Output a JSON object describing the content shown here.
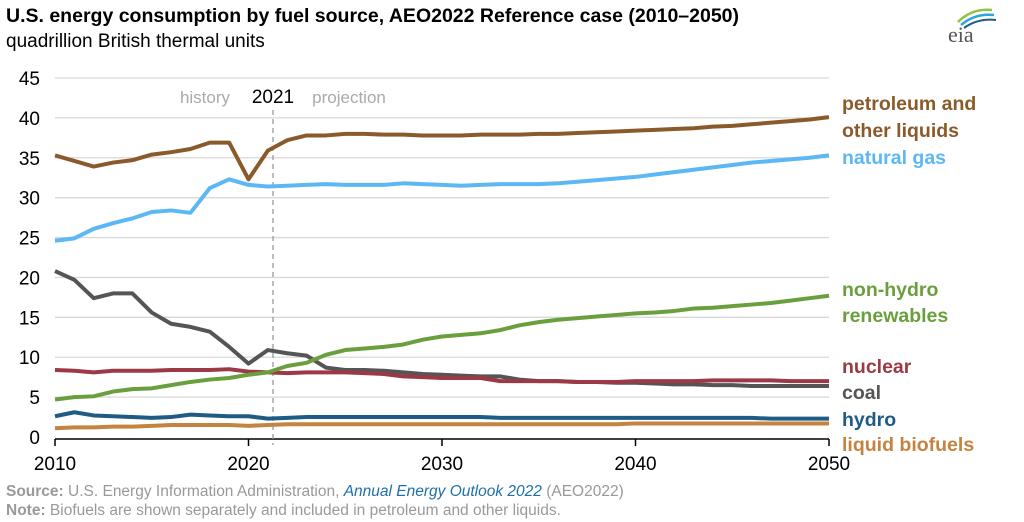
{
  "chart_data": {
    "type": "line",
    "title": "U.S. energy consumption by fuel source, AEO2022 Reference case (2010–2050)",
    "subtitle": "quadrillion British thermal units",
    "xlabel": "",
    "ylabel": "",
    "xlim": [
      2010,
      2050
    ],
    "ylim": [
      0,
      45
    ],
    "xticks": [
      "2010",
      "2020",
      "2030",
      "2040",
      "2050"
    ],
    "yticks": [
      "0",
      "5",
      "10",
      "15",
      "20",
      "25",
      "30",
      "35",
      "40",
      "45"
    ],
    "grid": "horizontal",
    "legend": "right (inline labels)",
    "annotations": {
      "divider_year": "2021",
      "history": "history",
      "projection": "projection"
    },
    "x": [
      2010,
      2011,
      2012,
      2013,
      2014,
      2015,
      2016,
      2017,
      2018,
      2019,
      2020,
      2021,
      2022,
      2023,
      2024,
      2025,
      2026,
      2027,
      2028,
      2029,
      2030,
      2031,
      2032,
      2033,
      2034,
      2035,
      2036,
      2037,
      2038,
      2039,
      2040,
      2041,
      2042,
      2043,
      2044,
      2045,
      2046,
      2047,
      2048,
      2049,
      2050
    ],
    "series": [
      {
        "name": "petroleum and other liquids",
        "label_lines": [
          "petroleum and",
          "other liquids"
        ],
        "color": "#8B5A2B",
        "values": [
          35.3,
          34.6,
          33.9,
          34.4,
          34.7,
          35.4,
          35.7,
          36.1,
          36.9,
          36.9,
          32.3,
          35.9,
          37.2,
          37.8,
          37.8,
          38.0,
          38.0,
          37.9,
          37.9,
          37.8,
          37.8,
          37.8,
          37.9,
          37.9,
          37.9,
          38.0,
          38.0,
          38.1,
          38.2,
          38.3,
          38.4,
          38.5,
          38.6,
          38.7,
          38.9,
          39.0,
          39.2,
          39.4,
          39.6,
          39.8,
          40.1
        ]
      },
      {
        "name": "natural gas",
        "label_lines": [
          "natural gas"
        ],
        "color": "#5BB8F5",
        "values": [
          24.6,
          24.9,
          26.1,
          26.8,
          27.4,
          28.2,
          28.4,
          28.1,
          31.2,
          32.3,
          31.6,
          31.4,
          31.5,
          31.6,
          31.7,
          31.6,
          31.6,
          31.6,
          31.8,
          31.7,
          31.6,
          31.5,
          31.6,
          31.7,
          31.7,
          31.7,
          31.8,
          32.0,
          32.2,
          32.4,
          32.6,
          32.9,
          33.2,
          33.5,
          33.8,
          34.1,
          34.4,
          34.6,
          34.8,
          35.0,
          35.3
        ]
      },
      {
        "name": "non-hydro renewables",
        "label_lines": [
          "non-hydro",
          "renewables"
        ],
        "color": "#6A9F3E",
        "values": [
          4.7,
          5.0,
          5.1,
          5.7,
          6.0,
          6.1,
          6.5,
          6.9,
          7.2,
          7.4,
          7.8,
          8.1,
          8.9,
          9.3,
          10.3,
          10.9,
          11.1,
          11.3,
          11.6,
          12.2,
          12.6,
          12.8,
          13.0,
          13.4,
          14.0,
          14.4,
          14.7,
          14.9,
          15.1,
          15.3,
          15.5,
          15.6,
          15.8,
          16.1,
          16.2,
          16.4,
          16.6,
          16.8,
          17.1,
          17.4,
          17.7
        ]
      },
      {
        "name": "nuclear",
        "label_lines": [
          "nuclear"
        ],
        "color": "#9B3A46",
        "values": [
          8.4,
          8.3,
          8.1,
          8.3,
          8.3,
          8.3,
          8.4,
          8.4,
          8.4,
          8.5,
          8.2,
          8.1,
          8.0,
          8.1,
          8.1,
          8.1,
          8.0,
          7.9,
          7.6,
          7.5,
          7.4,
          7.4,
          7.4,
          7.0,
          7.0,
          7.0,
          7.0,
          6.9,
          6.9,
          6.9,
          7.0,
          7.0,
          7.0,
          7.0,
          7.1,
          7.1,
          7.1,
          7.1,
          7.0,
          7.0,
          7.0
        ]
      },
      {
        "name": "coal",
        "label_lines": [
          "coal"
        ],
        "color": "#555555",
        "values": [
          20.8,
          19.7,
          17.4,
          18.0,
          18.0,
          15.6,
          14.2,
          13.8,
          13.2,
          11.3,
          9.2,
          10.9,
          10.5,
          10.2,
          8.7,
          8.4,
          8.4,
          8.3,
          8.1,
          7.9,
          7.8,
          7.7,
          7.6,
          7.6,
          7.2,
          7.0,
          7.0,
          6.9,
          6.9,
          6.8,
          6.8,
          6.7,
          6.6,
          6.6,
          6.5,
          6.5,
          6.4,
          6.4,
          6.4,
          6.4,
          6.4
        ]
      },
      {
        "name": "hydro",
        "label_lines": [
          "hydro"
        ],
        "color": "#1F5C85",
        "values": [
          2.6,
          3.1,
          2.7,
          2.6,
          2.5,
          2.4,
          2.5,
          2.8,
          2.7,
          2.6,
          2.6,
          2.3,
          2.4,
          2.5,
          2.5,
          2.5,
          2.5,
          2.5,
          2.5,
          2.5,
          2.5,
          2.5,
          2.5,
          2.4,
          2.4,
          2.4,
          2.4,
          2.4,
          2.4,
          2.4,
          2.4,
          2.4,
          2.4,
          2.4,
          2.4,
          2.4,
          2.4,
          2.3,
          2.3,
          2.3,
          2.3
        ]
      },
      {
        "name": "liquid biofuels",
        "label_lines": [
          "liquid biofuels"
        ],
        "color": "#C4843F",
        "values": [
          1.1,
          1.2,
          1.2,
          1.3,
          1.3,
          1.4,
          1.5,
          1.5,
          1.5,
          1.5,
          1.4,
          1.5,
          1.6,
          1.6,
          1.6,
          1.6,
          1.6,
          1.6,
          1.6,
          1.6,
          1.6,
          1.6,
          1.6,
          1.6,
          1.6,
          1.6,
          1.6,
          1.6,
          1.6,
          1.6,
          1.7,
          1.7,
          1.7,
          1.7,
          1.7,
          1.7,
          1.7,
          1.7,
          1.7,
          1.7,
          1.7
        ]
      }
    ]
  },
  "footer": {
    "source_label": "Source:",
    "source_text": " U.S. Energy Information Administration, ",
    "source_link": "Annual Energy Outlook 2022",
    "source_tail": " (AEO2022)",
    "note_label": "Note:",
    "note_text": " Biofuels are shown separately and included in petroleum and other liquids."
  },
  "logo": {
    "text": "eia"
  }
}
